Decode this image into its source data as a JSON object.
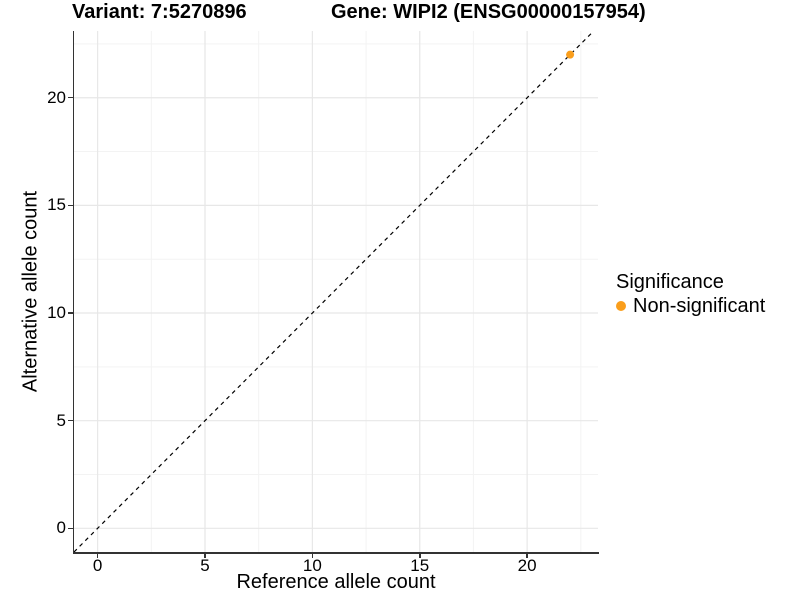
{
  "chart_data": {
    "type": "scatter",
    "titles": [
      "Variant: 7:5270896",
      "Gene: WIPI2 (ENSG00000157954)"
    ],
    "xlabel": "Reference allele count",
    "ylabel": "Alternative allele count",
    "xlim": [
      -1.1,
      23.3
    ],
    "ylim": [
      -1.1,
      23.1
    ],
    "x_ticks": [
      0,
      5,
      10,
      15,
      20
    ],
    "y_ticks": [
      0,
      5,
      10,
      15,
      20
    ],
    "x_minor_ticks": [
      2.5,
      7.5,
      12.5,
      17.5,
      22.5
    ],
    "y_minor_ticks": [
      2.5,
      7.5,
      12.5,
      17.5,
      22.5
    ],
    "grid": true,
    "identity_line": {
      "style": "dashed",
      "slope": 1,
      "intercept": 0
    },
    "series": [
      {
        "name": "Non-significant",
        "color": "#FA9E1C",
        "points": [
          {
            "x": 22,
            "y": 22
          }
        ]
      }
    ],
    "legend": {
      "title": "Significance",
      "position": "right",
      "entries": [
        {
          "label": "Non-significant",
          "color": "#FA9E1C"
        }
      ]
    }
  },
  "colors": {
    "point": "#FA9E1C",
    "grid_major": "#E7E7E7",
    "grid_minor": "#F3F3F3",
    "axis": "#333333",
    "identity_line": "#000000",
    "text": "#000000"
  }
}
